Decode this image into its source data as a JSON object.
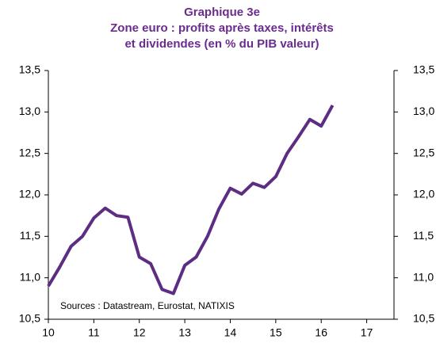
{
  "chart_data": {
    "type": "line",
    "title": [
      "Graphique 3e",
      "Zone euro : profits après taxes, intérêts",
      "et dividendes (en % du PIB valeur)"
    ],
    "annotation": "Sources : Datastream, Eurostat, NATIXIS",
    "x": [
      10,
      10.25,
      10.5,
      10.75,
      11,
      11.25,
      11.5,
      11.75,
      12,
      12.25,
      12.5,
      12.75,
      13,
      13.25,
      13.5,
      13.75,
      14,
      14.25,
      14.5,
      14.75,
      15,
      15.25,
      15.5,
      15.75,
      16,
      16.25
    ],
    "series": [
      {
        "color": "#5c2d82",
        "values": [
          10.9,
          11.13,
          11.38,
          11.5,
          11.72,
          11.84,
          11.75,
          11.73,
          11.25,
          11.17,
          10.86,
          10.81,
          11.15,
          11.25,
          11.5,
          11.83,
          12.08,
          12.01,
          12.14,
          12.09,
          12.22,
          12.5,
          12.7,
          12.91,
          12.83,
          13.08
        ]
      }
    ],
    "xlim": [
      10,
      17.6
    ],
    "xticks": [
      10,
      11,
      12,
      13,
      14,
      15,
      16,
      17
    ],
    "ylim": [
      10.5,
      13.5
    ],
    "yticks": [
      {
        "value": 10.5,
        "label": "10,5"
      },
      {
        "value": 11,
        "label": "11,0"
      },
      {
        "value": 11.5,
        "label": "11,5"
      },
      {
        "value": 12,
        "label": "12,0"
      },
      {
        "value": 12.5,
        "label": "12,5"
      },
      {
        "value": 13,
        "label": "13,0"
      },
      {
        "value": 13.5,
        "label": "13,5"
      }
    ],
    "y2lim": [
      10.5,
      13.5
    ],
    "y2ticks": [
      {
        "value": 10.5,
        "label": "10,5"
      },
      {
        "value": 11,
        "label": "11,0"
      },
      {
        "value": 11.5,
        "label": "11,5"
      },
      {
        "value": 12,
        "label": "12,0"
      },
      {
        "value": 12.5,
        "label": "12,5"
      },
      {
        "value": 13,
        "label": "13,0"
      },
      {
        "value": 13.5,
        "label": "13,5"
      }
    ],
    "grid": false
  }
}
